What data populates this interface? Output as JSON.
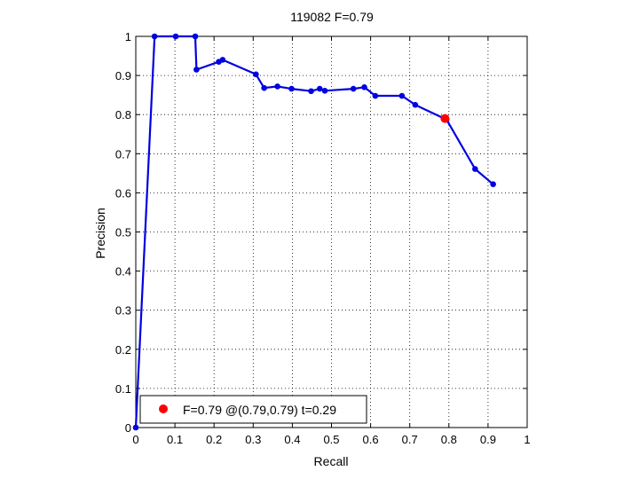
{
  "chart_data": {
    "type": "line",
    "title": "119082 F=0.79",
    "xlabel": "Recall",
    "ylabel": "Precision",
    "xlim": [
      0,
      1
    ],
    "ylim": [
      0,
      1
    ],
    "grid": true,
    "x_ticks": [
      "0",
      "0.1",
      "0.2",
      "0.3",
      "0.4",
      "0.5",
      "0.6",
      "0.7",
      "0.8",
      "0.9",
      "1"
    ],
    "y_ticks": [
      "0",
      "0.1",
      "0.2",
      "0.3",
      "0.4",
      "0.5",
      "0.6",
      "0.7",
      "0.8",
      "0.9",
      "1"
    ],
    "series": [
      {
        "color": "#0000e0",
        "marker": "dot",
        "points": [
          [
            0.0,
            0.0
          ],
          [
            0.048,
            1.0
          ],
          [
            0.102,
            1.0
          ],
          [
            0.152,
            1.0
          ],
          [
            0.155,
            0.915
          ],
          [
            0.212,
            0.935
          ],
          [
            0.222,
            0.94
          ],
          [
            0.307,
            0.903
          ],
          [
            0.328,
            0.868
          ],
          [
            0.362,
            0.872
          ],
          [
            0.398,
            0.866
          ],
          [
            0.448,
            0.86
          ],
          [
            0.47,
            0.866
          ],
          [
            0.483,
            0.861
          ],
          [
            0.556,
            0.866
          ],
          [
            0.584,
            0.87
          ],
          [
            0.612,
            0.848
          ],
          [
            0.68,
            0.848
          ],
          [
            0.714,
            0.825
          ],
          [
            0.794,
            0.787
          ],
          [
            0.867,
            0.661
          ],
          [
            0.913,
            0.622
          ]
        ]
      }
    ],
    "highlight": {
      "x": 0.79,
      "y": 0.79,
      "color": "#ff0000"
    },
    "legend": {
      "position": "bottom-left",
      "text": "F=0.79 @(0.79,0.79) t=0.29",
      "marker_color": "#ff0000"
    }
  }
}
